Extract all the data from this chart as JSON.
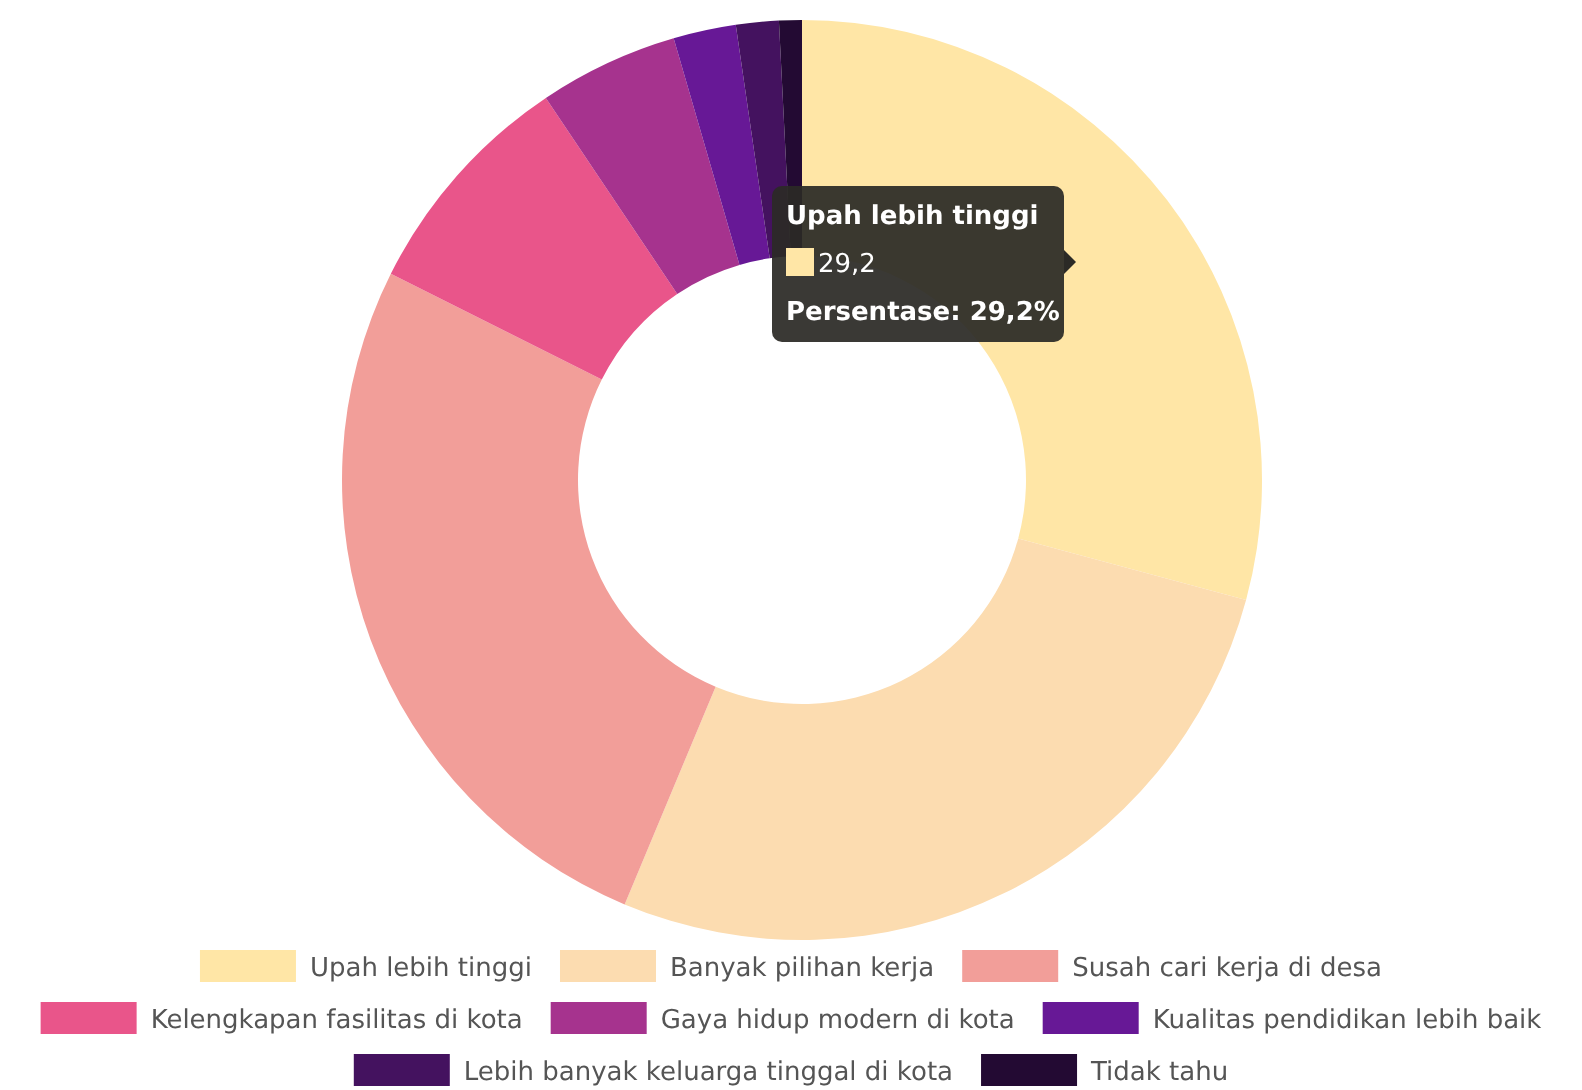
{
  "chart_data": {
    "type": "donut",
    "categories": [
      "Upah lebih tinggi",
      "Banyak pilihan kerja",
      "Susah cari kerja di desa",
      "Kelengkapan fasilitas di kota",
      "Gaya hidup modern di kota",
      "Kualitas pendidikan lebih baik",
      "Lebih banyak keluarga tinggal di kota",
      "Tidak tahu"
    ],
    "values": [
      29.2,
      27.1,
      26.1,
      8.2,
      4.9,
      2.2,
      1.5,
      0.8
    ],
    "colors": [
      "#ffe6a6",
      "#fcdcb0",
      "#f29e99",
      "#e9558a",
      "#a6338e",
      "#671896",
      "#44125f",
      "#230a33"
    ],
    "legend": "bottom",
    "annotations": [
      "Upah lebih tinggi",
      "29,2",
      "Persentase: 29,2%"
    ]
  }
}
